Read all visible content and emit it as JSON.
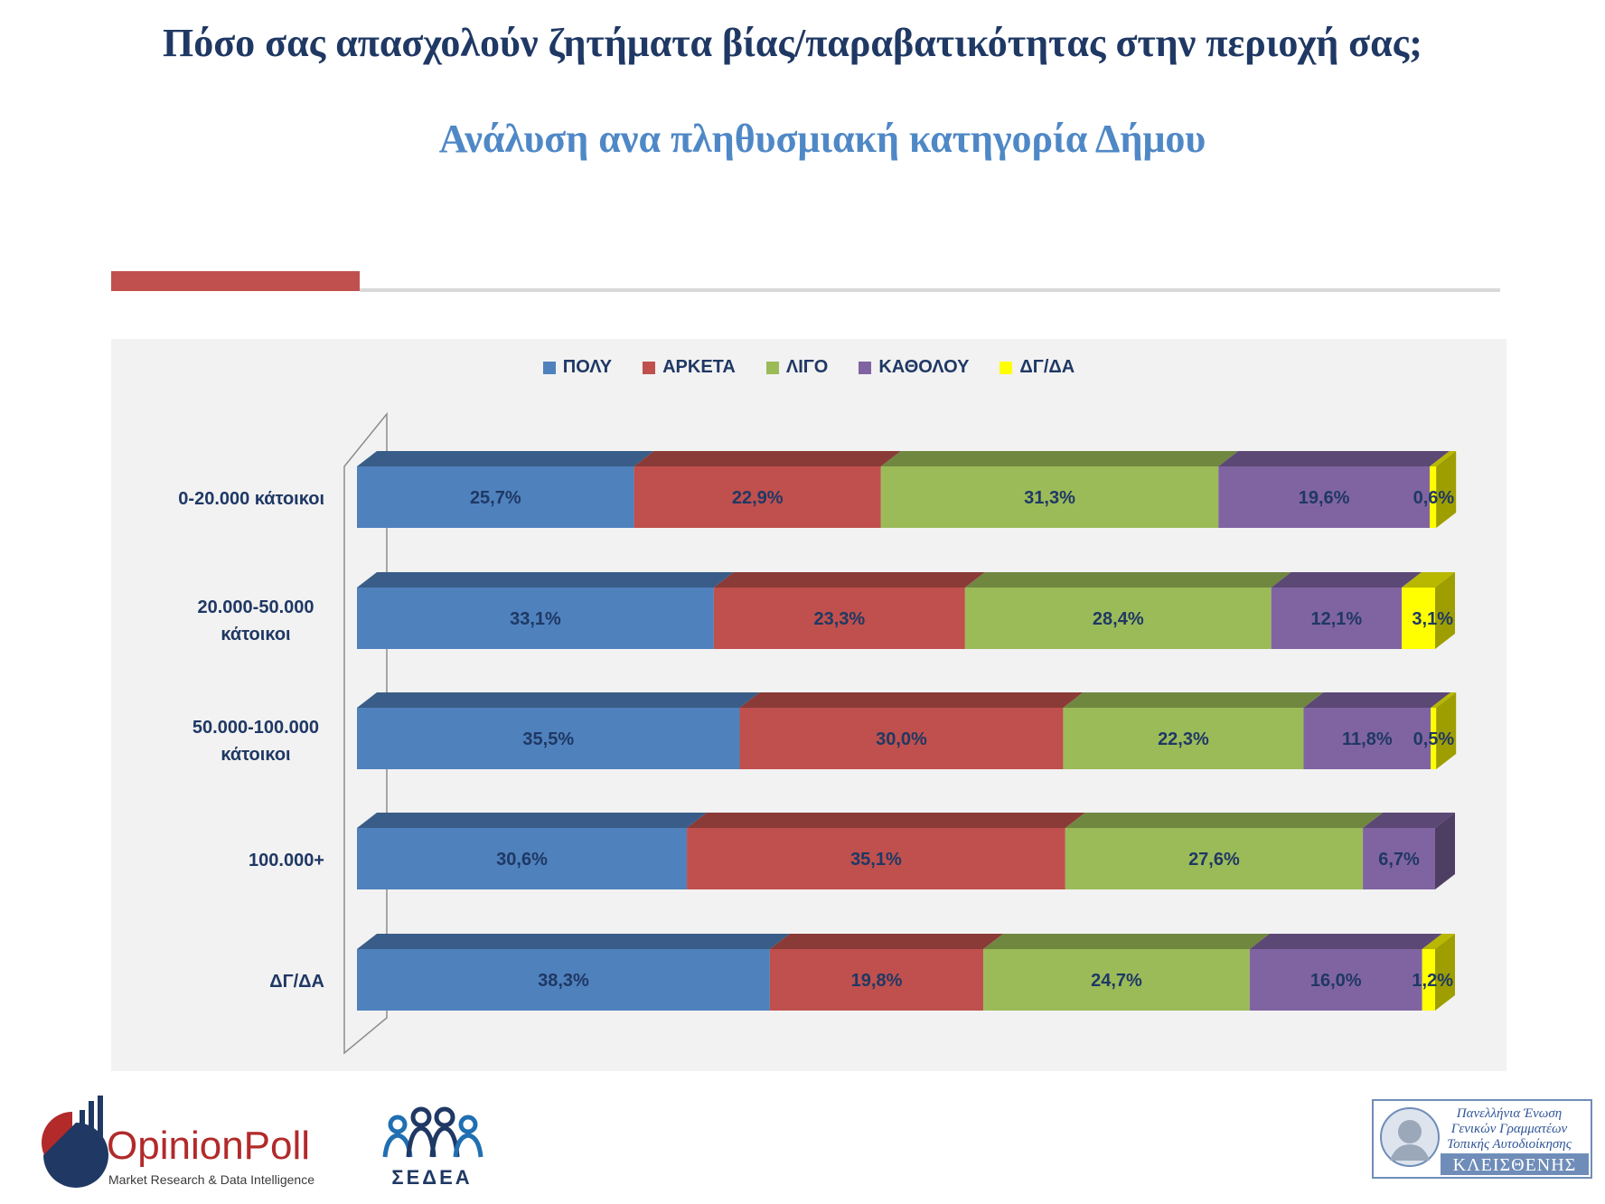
{
  "title": "Πόσο σας απασχολούν ζητήματα βίας/παραβατικότητας στην περιοχή σας;",
  "subtitle": "Ανάλυση ανα πληθυσμιακή κατηγορία Δήμου",
  "colors": {
    "title": "#1f3864",
    "subtitle": "#4f88c6",
    "accent_bar": "#c0504d",
    "panel": "#f2f2f2"
  },
  "chart_data": {
    "type": "bar",
    "orientation": "horizontal",
    "stacked": true,
    "percent_stacked": true,
    "style": "3d",
    "legend_position": "top",
    "grid": false,
    "title": "",
    "xlabel": "",
    "ylabel": "",
    "categories": [
      "0-20.000 κάτοικοι",
      "20.000-50.000 κάτοικοι",
      "50.000-100.000 κάτοικοι",
      "100.000+",
      "ΔΓ/ΔΑ"
    ],
    "series": [
      {
        "name": "ΠΟΛΥ",
        "color": "#4f81bd",
        "values": [
          25.7,
          33.1,
          35.5,
          30.6,
          38.3
        ],
        "labels": [
          "25,7%",
          "33,1%",
          "35,5%",
          "30,6%",
          "38,3%"
        ]
      },
      {
        "name": "ΑΡΚΕΤΑ",
        "color": "#c0504d",
        "values": [
          22.9,
          23.3,
          30.0,
          35.1,
          19.8
        ],
        "labels": [
          "22,9%",
          "23,3%",
          "30,0%",
          "35,1%",
          "19,8%"
        ]
      },
      {
        "name": "ΛΙΓΟ",
        "color": "#9bbb59",
        "values": [
          31.3,
          28.4,
          22.3,
          27.6,
          24.7
        ],
        "labels": [
          "31,3%",
          "28,4%",
          "22,3%",
          "27,6%",
          "24,7%"
        ]
      },
      {
        "name": "ΚΑΘΟΛΟΥ",
        "color": "#8064a2",
        "values": [
          19.6,
          12.1,
          11.8,
          6.7,
          16.0
        ],
        "labels": [
          "19,6%",
          "12,1%",
          "11,8%",
          "6,7%",
          "16,0%"
        ]
      },
      {
        "name": "ΔΓ/ΔΑ",
        "color": "#ffff00",
        "values": [
          0.6,
          3.1,
          0.5,
          null,
          1.2
        ],
        "labels": [
          "0,6%",
          "3,1%",
          "0,5%",
          "",
          "1,2%"
        ]
      }
    ]
  },
  "logos": {
    "opinionpoll": {
      "name": "OpinionPoll",
      "tagline": "Market Research & Data Intelligence"
    },
    "sedea": {
      "name": "ΣΕΔΕΑ"
    },
    "kleisthenis": {
      "lines": [
        "Πανελλήνια Ένωση",
        "Γενικών Γραμματέων",
        "Τοπικής Αυτοδιοίκησης"
      ],
      "name": "ΚΛΕΙΣΘΕΝΗΣ"
    }
  }
}
